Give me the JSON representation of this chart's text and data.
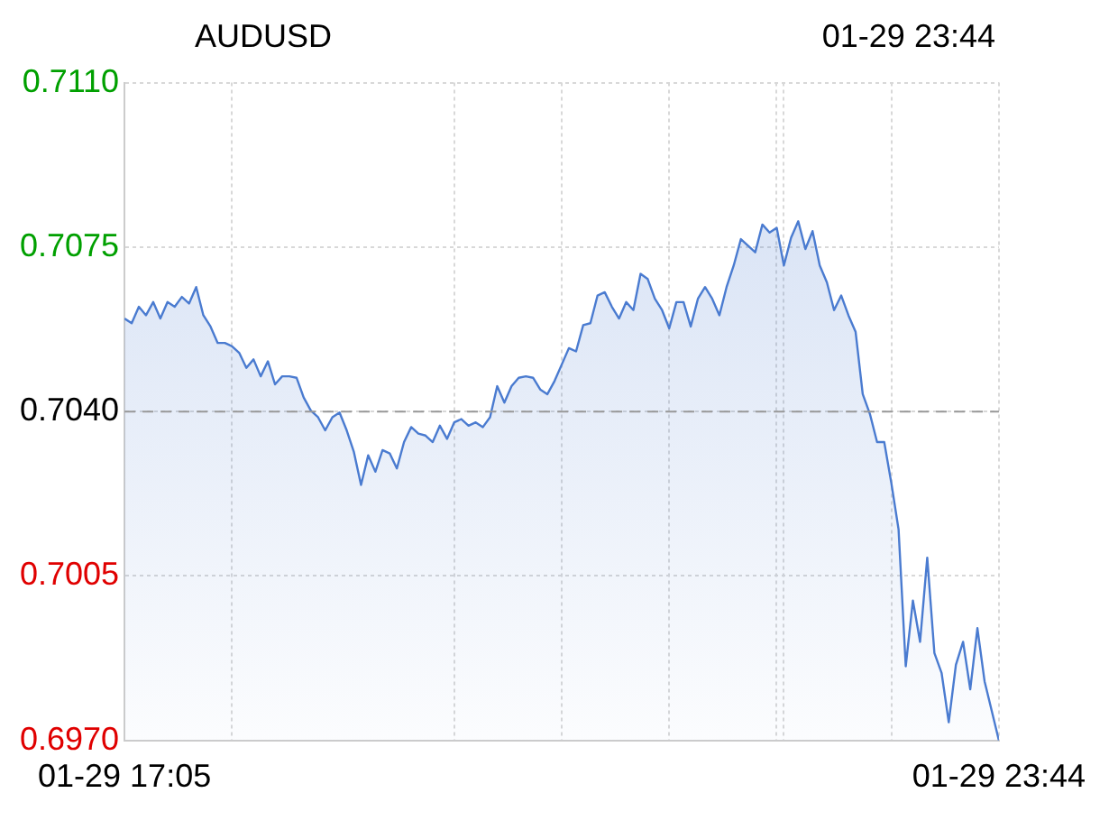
{
  "chart_data": {
    "type": "area",
    "title": "AUDUSD",
    "subtitle": "01-29 23:44",
    "categories": [
      "01-29 17:05",
      null,
      null,
      null,
      null,
      null,
      null,
      null,
      null,
      null,
      null,
      null,
      null,
      null,
      null,
      null,
      null,
      null,
      null,
      null,
      null,
      null,
      null,
      null,
      null,
      null,
      null,
      null,
      null,
      null,
      null,
      null,
      null,
      null,
      null,
      null,
      null,
      null,
      null,
      null,
      null,
      null,
      null,
      null,
      null,
      null,
      null,
      null,
      null,
      null,
      null,
      null,
      null,
      null,
      null,
      null,
      null,
      null,
      null,
      null,
      null,
      null,
      null,
      null,
      null,
      null,
      null,
      null,
      null,
      null,
      null,
      null,
      null,
      null,
      null,
      null,
      null,
      null,
      null,
      null,
      null,
      null,
      null,
      null,
      null,
      null,
      null,
      null,
      null,
      null,
      null,
      null,
      null,
      null,
      null,
      null,
      null,
      null,
      null,
      null,
      null,
      null,
      null,
      null,
      null,
      null,
      null,
      null,
      null,
      null,
      null,
      null,
      null,
      null,
      null,
      null,
      null,
      null,
      null,
      null,
      null,
      null,
      "01-29 23:44"
    ],
    "series": [
      {
        "color": "#4a7bd0",
        "values": [
          0.70598,
          0.70588,
          0.70623,
          0.70605,
          0.70633,
          0.70598,
          0.70633,
          0.70623,
          0.70644,
          0.7063,
          0.70665,
          0.70605,
          0.70581,
          0.70546,
          0.70546,
          0.70539,
          0.70525,
          0.70493,
          0.70511,
          0.70475,
          0.70507,
          0.70458,
          0.70475,
          0.70475,
          0.70472,
          0.7043,
          0.70402,
          0.70388,
          0.7036,
          0.70388,
          0.70398,
          0.7036,
          0.70314,
          0.70244,
          0.70307,
          0.70272,
          0.70318,
          0.70311,
          0.70279,
          0.70335,
          0.70367,
          0.70353,
          0.70349,
          0.70335,
          0.7037,
          0.70342,
          0.70377,
          0.70384,
          0.7037,
          0.70377,
          0.70367,
          0.70388,
          0.70454,
          0.70419,
          0.70454,
          0.70472,
          0.70475,
          0.70472,
          0.70447,
          0.70437,
          0.70465,
          0.705,
          0.70535,
          0.70528,
          0.70584,
          0.70588,
          0.70647,
          0.70654,
          0.70623,
          0.70598,
          0.70633,
          0.70616,
          0.70693,
          0.70682,
          0.7064,
          0.70616,
          0.70577,
          0.70633,
          0.70633,
          0.70581,
          0.7064,
          0.70665,
          0.7064,
          0.70605,
          0.70665,
          0.70711,
          0.70767,
          0.70753,
          0.70739,
          0.70798,
          0.70781,
          0.70791,
          0.70711,
          0.7077,
          0.70805,
          0.70746,
          0.70784,
          0.70711,
          0.70675,
          0.70616,
          0.70647,
          0.70605,
          0.7057,
          0.70437,
          0.70395,
          0.70335,
          0.70335,
          0.70247,
          0.70149,
          0.69858,
          0.69998,
          0.6991,
          0.70089,
          0.69886,
          0.69844,
          0.69739,
          0.69861,
          0.6991,
          0.69809,
          0.69939,
          0.69826,
          0.69763,
          0.697
        ]
      }
    ],
    "ylim": [
      0.697,
      0.711
    ],
    "yticks": [
      {
        "value": 0.697,
        "label": "0.6970"
      },
      {
        "value": 0.7005,
        "label": "0.7005"
      },
      {
        "value": 0.704,
        "label": "0.7040"
      },
      {
        "value": 0.7075,
        "label": "0.7075"
      },
      {
        "value": 0.711,
        "label": "0.7110"
      }
    ],
    "ref_lines": [
      {
        "axis": "y",
        "value": 0.704,
        "color": "#999999",
        "line_style": "dashed"
      }
    ],
    "grid": true,
    "line_style": "solid",
    "marker": "none",
    "legend": false
  }
}
